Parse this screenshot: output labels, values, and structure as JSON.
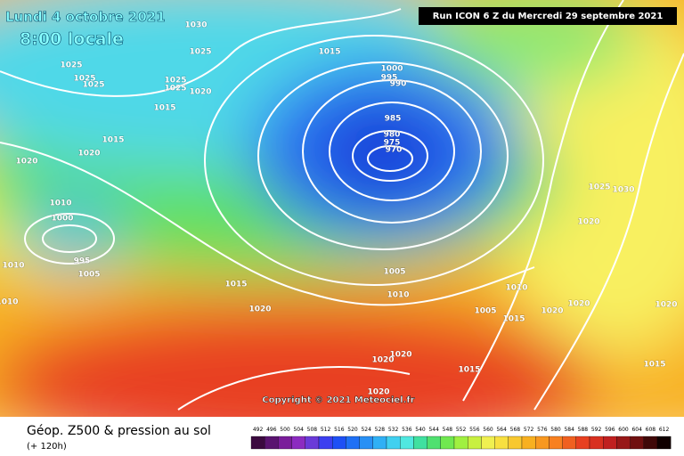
{
  "header": {
    "date": "Lundi 4 octobre 2021",
    "time": "8:00 locale",
    "run": "Run ICON 6 Z du Mercredi 29 septembre 2021"
  },
  "copyright": "Copyright © 2021 Meteociel.fr",
  "footer": {
    "title": "Géop. Z500 & pression au sol",
    "lead": "(+ 120h)"
  },
  "isobar_labels": [
    "1030",
    "1025",
    "1015",
    "1025",
    "1025",
    "1025",
    "1025",
    "1025",
    "1020",
    "1015",
    "1015",
    "1020",
    "1020",
    "1000",
    "995",
    "990",
    "985",
    "980",
    "975",
    "970",
    "1010",
    "1000",
    "995",
    "1005",
    "1010",
    "1015",
    "1020",
    "1005",
    "1010",
    "1005",
    "1010",
    "1015",
    "1020",
    "1020",
    "1025",
    "1030",
    "1020",
    "1020",
    "1015",
    "1015",
    "1020",
    "1020",
    "1020",
    "1010"
  ],
  "legend": {
    "labels": [
      492,
      496,
      500,
      504,
      508,
      512,
      516,
      520,
      524,
      528,
      532,
      536,
      540,
      544,
      548,
      552,
      556,
      560,
      564,
      568,
      572,
      576,
      580,
      584,
      588,
      592,
      596,
      600,
      604,
      608,
      612
    ],
    "colors": [
      "#3b0a3f",
      "#5a1470",
      "#7a1d9a",
      "#8c2bc0",
      "#6a3ad8",
      "#3c3ff0",
      "#1e50f5",
      "#1f70f5",
      "#2890f5",
      "#30b0f5",
      "#40d0f0",
      "#50e8e0",
      "#40e0a0",
      "#50e070",
      "#70e850",
      "#a0f040",
      "#c8f040",
      "#f0f050",
      "#f8e040",
      "#f8c830",
      "#f8b020",
      "#f89820",
      "#f88020",
      "#f06020",
      "#e84020",
      "#d83020",
      "#c02020",
      "#981818",
      "#701010",
      "#400808",
      "#100000"
    ]
  }
}
